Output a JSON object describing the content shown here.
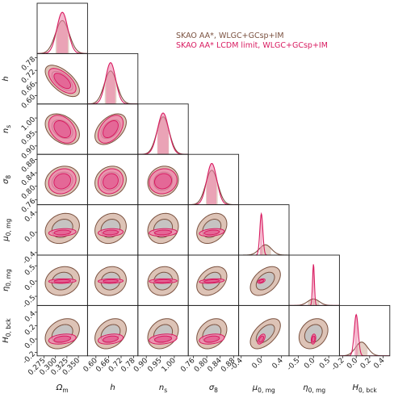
{
  "chart_data": {
    "type": "corner",
    "title": "",
    "parameters": [
      {
        "key": "Om",
        "label": "Ω",
        "sub": "m",
        "ticks": [
          "0.275",
          "0.300",
          "0.325",
          "0.350"
        ],
        "range": [
          0.26,
          0.37
        ],
        "fid": 0.315
      },
      {
        "key": "h",
        "label": "h",
        "sub": "",
        "ticks": [
          "0.60",
          "0.66",
          "0.72",
          "0.78"
        ],
        "range": [
          0.56,
          0.8
        ],
        "fid": 0.67
      },
      {
        "key": "ns",
        "label": "n",
        "sub": "s",
        "ticks": [
          "0.90",
          "0.95",
          "1.00"
        ],
        "range": [
          0.87,
          1.05
        ],
        "fid": 0.96
      },
      {
        "key": "s8",
        "label": "σ",
        "sub": "8",
        "ticks": [
          "0.76",
          "0.80",
          "0.84",
          "0.88"
        ],
        "range": [
          0.745,
          0.895
        ],
        "fid": 0.815
      },
      {
        "key": "mu0",
        "label": "μ",
        "sub": "0, mg",
        "ticks": [
          "-0.4",
          "0.0",
          "0.4"
        ],
        "range": [
          -0.45,
          0.55
        ],
        "fid": 0.0
      },
      {
        "key": "eta0",
        "label": "η",
        "sub": "0, mg",
        "ticks": [
          "-0.5",
          "0.0",
          "0.5"
        ],
        "range": [
          -0.8,
          0.85
        ],
        "fid": 0.0
      },
      {
        "key": "H0",
        "label": "H",
        "sub": "0, bck",
        "ticks": [
          "-0.2",
          "0.0",
          "0.2",
          "0.4"
        ],
        "range": [
          -0.25,
          0.5
        ],
        "fid": 0.0
      }
    ],
    "series": [
      {
        "name": "SKAO AA*, WLGC+GCsp+IM",
        "color": "#7b5240",
        "fill": "#d9bcae",
        "inner_fill": "#c3c3c3",
        "sigma": {
          "Om": 0.015,
          "h": 0.03,
          "ns": 0.022,
          "s8": 0.018,
          "mu0": 0.12,
          "eta0": 0.19,
          "H0": 0.09
        },
        "mean": {
          "Om": 0.315,
          "h": 0.67,
          "ns": 0.96,
          "s8": 0.815,
          "mu0": 0.08,
          "eta0": 0.0,
          "H0": 0.08
        }
      },
      {
        "name": "SKAO AA* LCDM limit, WLGC+GCsp+IM",
        "color": "#d81b60",
        "fill": "#ef86ac",
        "inner_fill": "#e35a8d",
        "sigma": {
          "Om": 0.012,
          "h": 0.024,
          "ns": 0.02,
          "s8": 0.015,
          "mu0": 0.03,
          "eta0": 0.03,
          "H0": 0.03
        },
        "mean": {
          "Om": 0.315,
          "h": 0.67,
          "ns": 0.96,
          "s8": 0.815,
          "mu0": 0.0,
          "eta0": 0.0,
          "H0": 0.0
        }
      }
    ],
    "correlations": {
      "Om-h": -0.62,
      "Om-ns": -0.35,
      "h-ns": 0.45,
      "Om-s8": 0.15,
      "h-s8": 0.12,
      "ns-s8": 0.1,
      "Om-mu0": 0.2,
      "h-mu0": 0.15,
      "ns-mu0": 0.15,
      "s8-mu0": 0.3,
      "Om-eta0": 0.15,
      "h-eta0": 0.1,
      "ns-eta0": 0.1,
      "s8-eta0": 0.35,
      "mu0-eta0": 0.45,
      "Om-H0": 0.3,
      "h-H0": 0.3,
      "ns-H0": 0.25,
      "s8-H0": 0.3,
      "mu0-H0": 0.55,
      "eta0-H0": 0.25
    },
    "legend_position": "top-right"
  }
}
